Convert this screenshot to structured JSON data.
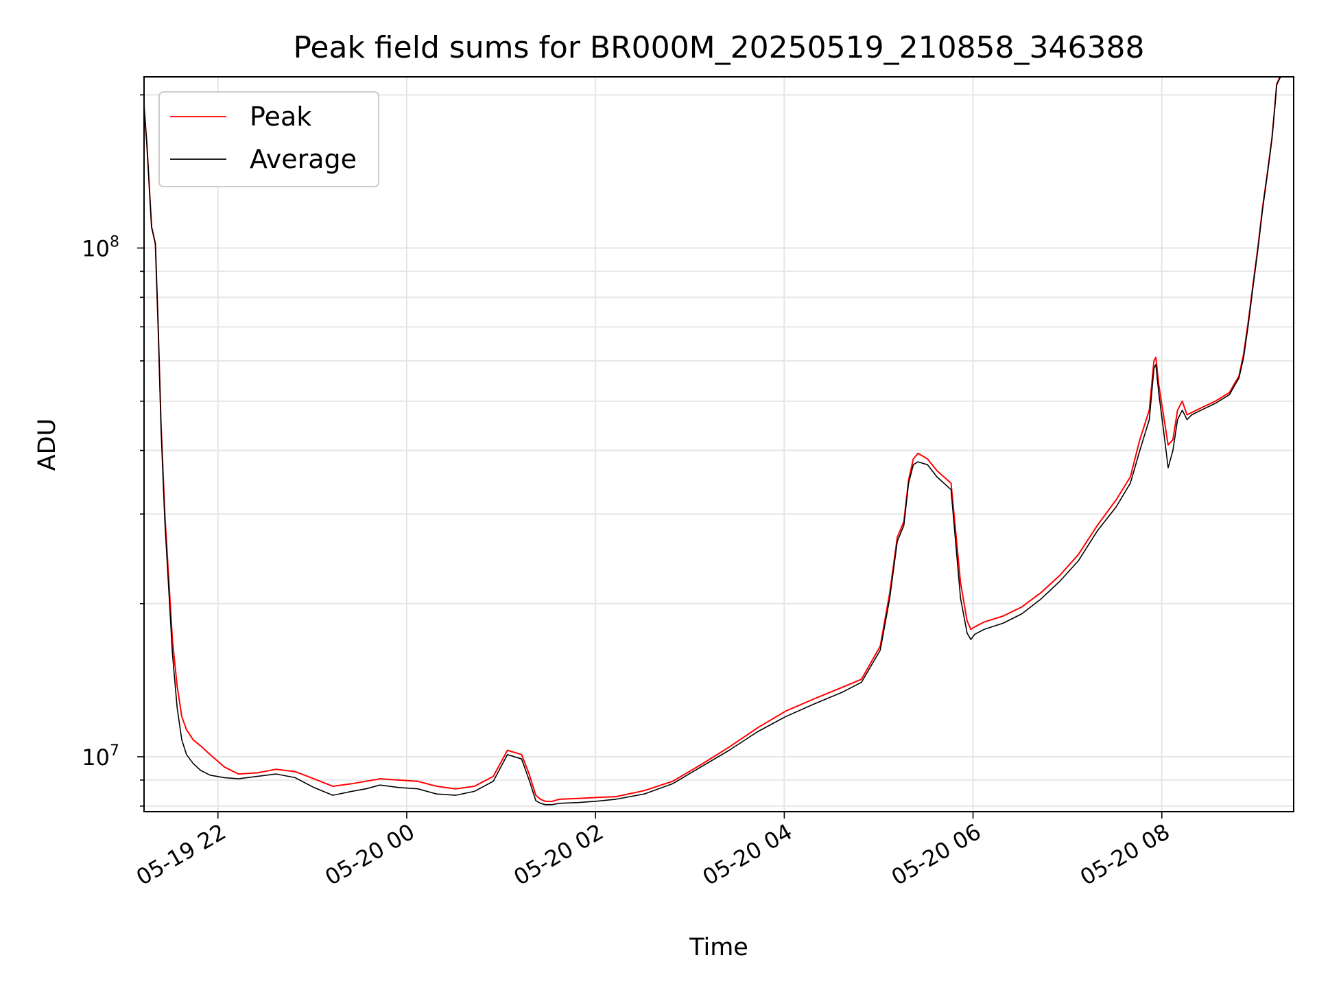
{
  "chart_data": {
    "type": "line",
    "title": "Peak field sums for BR000M_20250519_210858_346388",
    "xlabel": "Time",
    "ylabel": "ADU",
    "x_unit": "hours (since 05-19 21:13)",
    "xlim": [
      0.0,
      12.18
    ],
    "ylim": [
      7800000,
      217000000
    ],
    "yscale": "log",
    "grid": true,
    "legend_position": "upper-left",
    "x_ticks": [
      {
        "value": 0.783,
        "label": "05-19 22"
      },
      {
        "value": 2.783,
        "label": "05-20 00"
      },
      {
        "value": 4.783,
        "label": "05-20 02"
      },
      {
        "value": 6.783,
        "label": "05-20 04"
      },
      {
        "value": 8.783,
        "label": "05-20 06"
      },
      {
        "value": 10.783,
        "label": "05-20 08"
      }
    ],
    "y_ticks": [
      {
        "value": 10000000,
        "base": "10",
        "exp": "7"
      },
      {
        "value": 100000000,
        "base": "10",
        "exp": "8"
      }
    ],
    "series": [
      {
        "name": "Peak",
        "color": "#ff0000",
        "x": [
          0.0,
          0.03,
          0.08,
          0.12,
          0.15,
          0.18,
          0.22,
          0.27,
          0.3,
          0.35,
          0.4,
          0.45,
          0.52,
          0.6,
          0.7,
          0.85,
          1.0,
          1.2,
          1.4,
          1.6,
          1.8,
          2.0,
          2.2,
          2.35,
          2.5,
          2.7,
          2.9,
          3.1,
          3.3,
          3.5,
          3.7,
          3.85,
          4.0,
          4.08,
          4.15,
          4.2,
          4.25,
          4.32,
          4.4,
          4.6,
          4.8,
          5.0,
          5.3,
          5.6,
          5.9,
          6.2,
          6.5,
          6.8,
          7.1,
          7.4,
          7.6,
          7.8,
          7.9,
          7.98,
          8.05,
          8.1,
          8.15,
          8.2,
          8.3,
          8.4,
          8.55,
          8.65,
          8.72,
          8.76,
          8.8,
          8.9,
          9.1,
          9.3,
          9.5,
          9.7,
          9.9,
          10.1,
          10.3,
          10.45,
          10.55,
          10.65,
          10.7,
          10.72,
          10.75,
          10.8,
          10.85,
          10.9,
          10.95,
          11.0,
          11.05,
          11.1,
          11.2,
          11.35,
          11.5,
          11.55,
          11.6,
          11.65,
          11.7,
          11.75,
          11.8,
          11.85,
          11.9,
          11.95,
          11.98,
          12.0,
          12.05,
          12.18
        ],
        "y": [
          190000000,
          160000000,
          110000000,
          102000000,
          70000000,
          45000000,
          30000000,
          21000000,
          17000000,
          13800000,
          12000000,
          11300000,
          10800000,
          10500000,
          10100000,
          9550000,
          9250000,
          9300000,
          9450000,
          9350000,
          9050000,
          8750000,
          8850000,
          8950000,
          9050000,
          9000000,
          8950000,
          8750000,
          8650000,
          8750000,
          9150000,
          10300000,
          10100000,
          9250000,
          8400000,
          8250000,
          8180000,
          8170000,
          8250000,
          8280000,
          8320000,
          8350000,
          8580000,
          8950000,
          9650000,
          10450000,
          11400000,
          12300000,
          13000000,
          13700000,
          14200000,
          16500000,
          21000000,
          27000000,
          29000000,
          35000000,
          38500000,
          39500000,
          38500000,
          36500000,
          34500000,
          22000000,
          18500000,
          17800000,
          18000000,
          18400000,
          18900000,
          19700000,
          21000000,
          22700000,
          25000000,
          28500000,
          32000000,
          35500000,
          42000000,
          48000000,
          60000000,
          61000000,
          54000000,
          47000000,
          41000000,
          42000000,
          48000000,
          50000000,
          47000000,
          47500000,
          48500000,
          50000000,
          52000000,
          54000000,
          56000000,
          62000000,
          72000000,
          85000000,
          100000000,
          120000000,
          140000000,
          165000000,
          190000000,
          210000000,
          220000000,
          240000000
        ]
      },
      {
        "name": "Average",
        "color": "#000000",
        "x": [
          0.0,
          0.03,
          0.08,
          0.12,
          0.15,
          0.18,
          0.22,
          0.27,
          0.3,
          0.35,
          0.4,
          0.45,
          0.52,
          0.6,
          0.7,
          0.85,
          1.0,
          1.2,
          1.4,
          1.6,
          1.8,
          2.0,
          2.2,
          2.35,
          2.5,
          2.7,
          2.9,
          3.1,
          3.3,
          3.5,
          3.7,
          3.85,
          4.0,
          4.08,
          4.15,
          4.2,
          4.25,
          4.32,
          4.4,
          4.6,
          4.8,
          5.0,
          5.3,
          5.6,
          5.9,
          6.2,
          6.5,
          6.8,
          7.1,
          7.4,
          7.6,
          7.8,
          7.9,
          7.98,
          8.05,
          8.1,
          8.15,
          8.2,
          8.3,
          8.4,
          8.55,
          8.65,
          8.72,
          8.76,
          8.8,
          8.9,
          9.1,
          9.3,
          9.5,
          9.7,
          9.9,
          10.1,
          10.3,
          10.45,
          10.55,
          10.65,
          10.7,
          10.72,
          10.75,
          10.8,
          10.85,
          10.9,
          10.95,
          11.0,
          11.05,
          11.1,
          11.2,
          11.35,
          11.5,
          11.55,
          11.6,
          11.65,
          11.7,
          11.75,
          11.8,
          11.85,
          11.9,
          11.95,
          11.98,
          12.0,
          12.05,
          12.18
        ],
        "y": [
          190000000,
          160000000,
          110000000,
          102000000,
          70000000,
          44000000,
          29000000,
          20000000,
          16000000,
          12500000,
          10800000,
          10100000,
          9700000,
          9400000,
          9200000,
          9100000,
          9050000,
          9150000,
          9250000,
          9100000,
          8700000,
          8400000,
          8550000,
          8650000,
          8800000,
          8700000,
          8650000,
          8450000,
          8400000,
          8550000,
          8950000,
          10100000,
          9900000,
          9000000,
          8200000,
          8100000,
          8050000,
          8050000,
          8100000,
          8130000,
          8180000,
          8250000,
          8450000,
          8850000,
          9550000,
          10300000,
          11200000,
          12000000,
          12700000,
          13400000,
          14000000,
          16200000,
          20500000,
          26500000,
          28500000,
          34500000,
          37500000,
          38000000,
          37500000,
          35500000,
          33500000,
          20500000,
          17500000,
          17000000,
          17400000,
          17800000,
          18300000,
          19100000,
          20400000,
          22100000,
          24300000,
          27800000,
          31000000,
          34500000,
          40000000,
          46000000,
          58000000,
          59000000,
          52000000,
          44000000,
          37000000,
          40000000,
          46000000,
          48000000,
          46000000,
          47000000,
          48000000,
          49500000,
          51500000,
          53500000,
          55500000,
          61000000,
          71000000,
          84000000,
          99000000,
          119000000,
          139000000,
          164000000,
          189000000,
          209000000,
          219000000,
          239000000
        ]
      }
    ]
  }
}
